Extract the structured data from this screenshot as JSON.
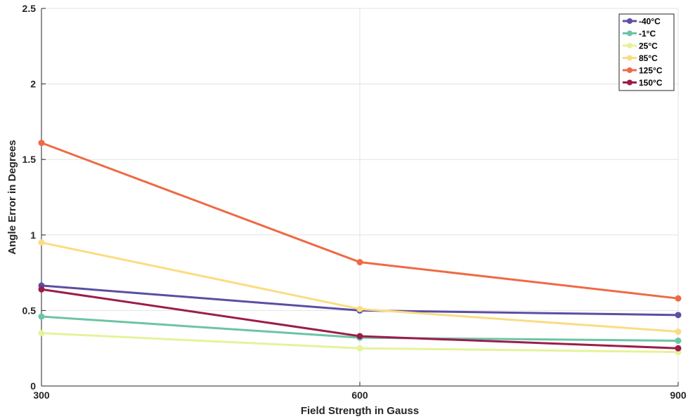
{
  "chart_data": {
    "type": "line",
    "title": "",
    "xlabel": "Field Strength in Gauss",
    "ylabel": "Angle Error in Degrees",
    "x": [
      300,
      600,
      900
    ],
    "xlim": [
      300,
      900
    ],
    "ylim": [
      0,
      2.5
    ],
    "xticks": [
      "300",
      "600",
      "900"
    ],
    "yticks": [
      "0",
      "0.5",
      "1",
      "1.5",
      "2",
      "2.5"
    ],
    "grid": true,
    "legend_position": "top-right",
    "series": [
      {
        "name": "-40°C",
        "color": "#5b4ea3",
        "values": [
          0.665,
          0.5,
          0.47
        ]
      },
      {
        "name": "-1°C",
        "color": "#6cc4a4",
        "values": [
          0.46,
          0.32,
          0.3
        ]
      },
      {
        "name": "25°C",
        "color": "#e6f29a",
        "values": [
          0.35,
          0.25,
          0.225
        ]
      },
      {
        "name": "85°C",
        "color": "#fbdc82",
        "values": [
          0.95,
          0.51,
          0.36
        ]
      },
      {
        "name": "125°C",
        "color": "#ee6a44",
        "values": [
          1.61,
          0.82,
          0.58
        ]
      },
      {
        "name": "150°C",
        "color": "#9c1c4b",
        "values": [
          0.64,
          0.33,
          0.25
        ]
      }
    ]
  }
}
